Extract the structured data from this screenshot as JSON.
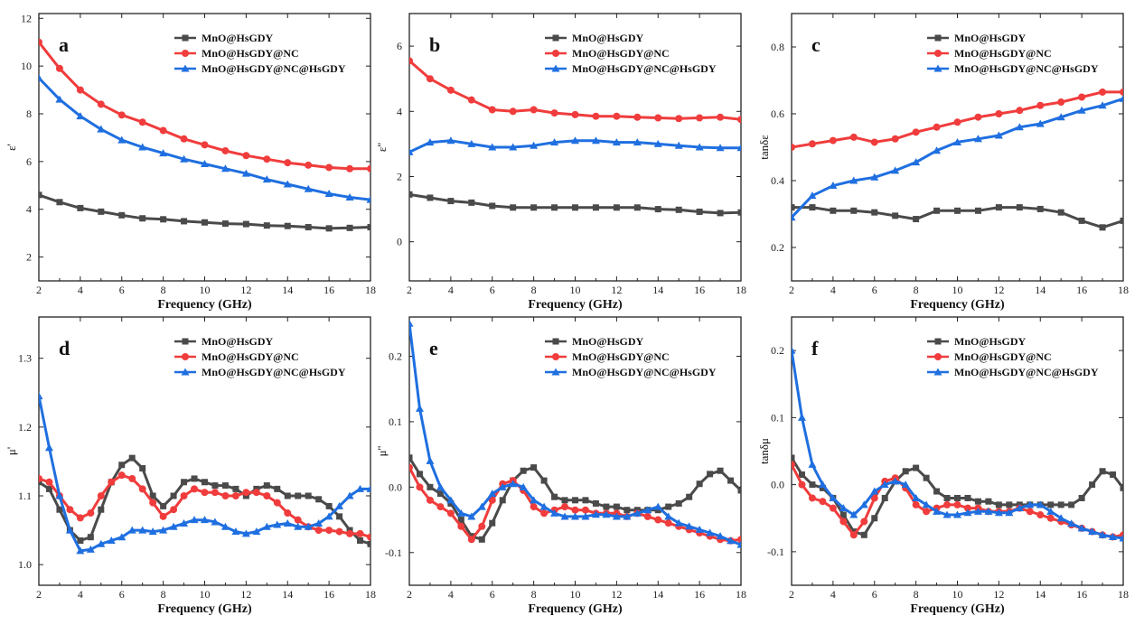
{
  "figure": {
    "xlabel": "Frequency (GHz)"
  },
  "series_styles": [
    {
      "name": "MnO@HsGDY",
      "color": "#4a4a4a",
      "marker": "square"
    },
    {
      "name": "MnO@HsGDY@NC",
      "color": "#f03c3c",
      "marker": "circle"
    },
    {
      "name": "MnO@HsGDY@NC@HsGDY",
      "color": "#1f6fe0",
      "marker": "triangle"
    }
  ],
  "chart_data": [
    {
      "type": "line",
      "panel": "a",
      "ylabel": "ε'",
      "xlabel": "Frequency (GHz)",
      "xlim": [
        2,
        18
      ],
      "ylim": [
        1,
        12.2
      ],
      "xticks": [
        "2",
        "4",
        "6",
        "8",
        "10",
        "12",
        "14",
        "16",
        "18"
      ],
      "yticks": [
        "2",
        "4",
        "6",
        "8",
        "10",
        "12"
      ],
      "legend": "top-center",
      "x": [
        2,
        3,
        4,
        5,
        6,
        7,
        8,
        9,
        10,
        11,
        12,
        13,
        14,
        15,
        16,
        17,
        18
      ],
      "series": [
        {
          "name": "MnO@HsGDY",
          "values": [
            4.6,
            4.3,
            4.05,
            3.9,
            3.75,
            3.62,
            3.58,
            3.5,
            3.45,
            3.4,
            3.38,
            3.32,
            3.3,
            3.25,
            3.2,
            3.22,
            3.25
          ]
        },
        {
          "name": "MnO@HsGDY@NC",
          "values": [
            11.0,
            9.9,
            9.0,
            8.4,
            7.95,
            7.65,
            7.3,
            6.95,
            6.7,
            6.45,
            6.25,
            6.1,
            5.95,
            5.85,
            5.75,
            5.7,
            5.7
          ]
        },
        {
          "name": "MnO@HsGDY@NC@HsGDY",
          "values": [
            9.5,
            8.6,
            7.9,
            7.35,
            6.9,
            6.6,
            6.35,
            6.1,
            5.9,
            5.7,
            5.5,
            5.25,
            5.05,
            4.85,
            4.65,
            4.5,
            4.4
          ]
        }
      ]
    },
    {
      "type": "line",
      "panel": "b",
      "ylabel": "ε''",
      "xlabel": "Frequency (GHz)",
      "xlim": [
        2,
        18
      ],
      "ylim": [
        -1.2,
        7.0
      ],
      "xticks": [
        "2",
        "4",
        "6",
        "8",
        "10",
        "12",
        "14",
        "16",
        "18"
      ],
      "yticks": [
        "0",
        "2",
        "4",
        "6"
      ],
      "legend": "top-center",
      "x": [
        2,
        3,
        4,
        5,
        6,
        7,
        8,
        9,
        10,
        11,
        12,
        13,
        14,
        15,
        16,
        17,
        18
      ],
      "series": [
        {
          "name": "MnO@HsGDY",
          "values": [
            1.45,
            1.35,
            1.25,
            1.2,
            1.1,
            1.05,
            1.05,
            1.05,
            1.05,
            1.05,
            1.05,
            1.05,
            1.0,
            0.98,
            0.92,
            0.88,
            0.9
          ]
        },
        {
          "name": "MnO@HsGDY@NC",
          "values": [
            5.55,
            5.0,
            4.65,
            4.35,
            4.05,
            4.0,
            4.05,
            3.95,
            3.9,
            3.85,
            3.85,
            3.82,
            3.8,
            3.78,
            3.8,
            3.82,
            3.75
          ]
        },
        {
          "name": "MnO@HsGDY@NC@HsGDY",
          "values": [
            2.75,
            3.05,
            3.1,
            3.0,
            2.9,
            2.9,
            2.95,
            3.05,
            3.1,
            3.1,
            3.05,
            3.05,
            3.0,
            2.95,
            2.9,
            2.88,
            2.88
          ]
        }
      ]
    },
    {
      "type": "line",
      "panel": "c",
      "ylabel": "tanδε",
      "xlabel": "Frequency (GHz)",
      "xlim": [
        2,
        18
      ],
      "ylim": [
        0.1,
        0.9
      ],
      "xticks": [
        "2",
        "4",
        "6",
        "8",
        "10",
        "12",
        "14",
        "16",
        "18"
      ],
      "yticks": [
        "0.2",
        "0.4",
        "0.6",
        "0.8"
      ],
      "legend": "top-center",
      "x": [
        2,
        3,
        4,
        5,
        6,
        7,
        8,
        9,
        10,
        11,
        12,
        13,
        14,
        15,
        16,
        17,
        18
      ],
      "series": [
        {
          "name": "MnO@HsGDY",
          "values": [
            0.32,
            0.32,
            0.31,
            0.31,
            0.305,
            0.295,
            0.285,
            0.31,
            0.31,
            0.31,
            0.32,
            0.32,
            0.315,
            0.305,
            0.28,
            0.26,
            0.28
          ]
        },
        {
          "name": "MnO@HsGDY@NC",
          "values": [
            0.5,
            0.51,
            0.52,
            0.53,
            0.515,
            0.525,
            0.545,
            0.56,
            0.575,
            0.59,
            0.6,
            0.61,
            0.625,
            0.635,
            0.65,
            0.665,
            0.665
          ]
        },
        {
          "name": "MnO@HsGDY@NC@HsGDY",
          "values": [
            0.29,
            0.355,
            0.385,
            0.4,
            0.41,
            0.43,
            0.455,
            0.49,
            0.515,
            0.525,
            0.535,
            0.56,
            0.57,
            0.59,
            0.61,
            0.625,
            0.645
          ]
        }
      ]
    },
    {
      "type": "line",
      "panel": "d",
      "ylabel": "μ'",
      "xlabel": "Frequency (GHz)",
      "xlim": [
        2,
        18
      ],
      "ylim": [
        0.97,
        1.36
      ],
      "xticks": [
        "2",
        "4",
        "6",
        "8",
        "10",
        "12",
        "14",
        "16",
        "18"
      ],
      "yticks": [
        "1.0",
        "1.1",
        "1.2",
        "1.3"
      ],
      "legend": "top-center",
      "x": [
        2,
        2.5,
        3,
        3.5,
        4,
        4.5,
        5,
        5.5,
        6,
        6.5,
        7,
        7.5,
        8,
        8.5,
        9,
        9.5,
        10,
        10.5,
        11,
        11.5,
        12,
        12.5,
        13,
        13.5,
        14,
        14.5,
        15,
        15.5,
        16,
        16.5,
        17,
        17.5,
        18
      ],
      "series": [
        {
          "name": "MnO@HsGDY",
          "values": [
            1.12,
            1.11,
            1.08,
            1.05,
            1.035,
            1.04,
            1.08,
            1.12,
            1.145,
            1.155,
            1.14,
            1.1,
            1.085,
            1.1,
            1.12,
            1.125,
            1.12,
            1.115,
            1.115,
            1.11,
            1.1,
            1.11,
            1.115,
            1.11,
            1.1,
            1.1,
            1.1,
            1.095,
            1.085,
            1.07,
            1.05,
            1.035,
            1.03
          ]
        },
        {
          "name": "MnO@HsGDY@NC",
          "values": [
            1.125,
            1.12,
            1.1,
            1.08,
            1.068,
            1.075,
            1.1,
            1.12,
            1.13,
            1.125,
            1.11,
            1.09,
            1.07,
            1.08,
            1.1,
            1.11,
            1.105,
            1.105,
            1.1,
            1.1,
            1.105,
            1.105,
            1.1,
            1.09,
            1.075,
            1.065,
            1.055,
            1.05,
            1.05,
            1.048,
            1.045,
            1.045,
            1.04
          ]
        },
        {
          "name": "MnO@HsGDY@NC@HsGDY",
          "values": [
            1.245,
            1.17,
            1.1,
            1.05,
            1.02,
            1.022,
            1.03,
            1.035,
            1.04,
            1.05,
            1.05,
            1.048,
            1.05,
            1.055,
            1.06,
            1.065,
            1.065,
            1.062,
            1.055,
            1.048,
            1.045,
            1.048,
            1.055,
            1.058,
            1.06,
            1.055,
            1.055,
            1.06,
            1.07,
            1.085,
            1.1,
            1.11,
            1.11
          ]
        }
      ]
    },
    {
      "type": "line",
      "panel": "e",
      "ylabel": "μ''",
      "xlabel": "Frequency (GHz)",
      "xlim": [
        2,
        18
      ],
      "ylim": [
        -0.15,
        0.26
      ],
      "xticks": [
        "2",
        "4",
        "6",
        "8",
        "10",
        "12",
        "14",
        "16",
        "18"
      ],
      "yticks": [
        "-0.1",
        "0.0",
        "0.1",
        "0.2"
      ],
      "legend": "top-center",
      "x": [
        2,
        2.5,
        3,
        3.5,
        4,
        4.5,
        5,
        5.5,
        6,
        6.5,
        7,
        7.5,
        8,
        8.5,
        9,
        9.5,
        10,
        10.5,
        11,
        11.5,
        12,
        12.5,
        13,
        13.5,
        14,
        14.5,
        15,
        15.5,
        16,
        16.5,
        17,
        17.5,
        18
      ],
      "series": [
        {
          "name": "MnO@HsGDY",
          "values": [
            0.045,
            0.02,
            0.0,
            -0.01,
            -0.025,
            -0.05,
            -0.075,
            -0.08,
            -0.055,
            -0.02,
            0.01,
            0.025,
            0.03,
            0.01,
            -0.015,
            -0.02,
            -0.02,
            -0.02,
            -0.025,
            -0.03,
            -0.03,
            -0.035,
            -0.035,
            -0.035,
            -0.035,
            -0.03,
            -0.025,
            -0.015,
            0.005,
            0.02,
            0.025,
            0.01,
            -0.005
          ]
        },
        {
          "name": "MnO@HsGDY@NC",
          "values": [
            0.03,
            0.0,
            -0.02,
            -0.03,
            -0.04,
            -0.06,
            -0.08,
            -0.06,
            -0.02,
            0.005,
            0.01,
            -0.005,
            -0.03,
            -0.04,
            -0.035,
            -0.03,
            -0.035,
            -0.035,
            -0.04,
            -0.04,
            -0.04,
            -0.045,
            -0.04,
            -0.045,
            -0.05,
            -0.055,
            -0.06,
            -0.065,
            -0.07,
            -0.075,
            -0.08,
            -0.082,
            -0.08
          ]
        },
        {
          "name": "MnO@HsGDY@NC@HsGDY",
          "values": [
            0.25,
            0.12,
            0.04,
            0.0,
            -0.02,
            -0.04,
            -0.045,
            -0.03,
            -0.01,
            0.0,
            0.005,
            0.0,
            -0.02,
            -0.03,
            -0.04,
            -0.045,
            -0.045,
            -0.045,
            -0.042,
            -0.042,
            -0.045,
            -0.045,
            -0.04,
            -0.035,
            -0.03,
            -0.045,
            -0.055,
            -0.06,
            -0.065,
            -0.07,
            -0.075,
            -0.082,
            -0.088
          ]
        }
      ]
    },
    {
      "type": "line",
      "panel": "f",
      "ylabel": "tanδμ",
      "xlabel": "Frequency (GHz)",
      "xlim": [
        2,
        18
      ],
      "ylim": [
        -0.15,
        0.25
      ],
      "xticks": [
        "2",
        "4",
        "6",
        "8",
        "10",
        "12",
        "14",
        "16",
        "18"
      ],
      "yticks": [
        "-0.1",
        "0.0",
        "0.1",
        "0.2"
      ],
      "legend": "top-center",
      "x": [
        2,
        2.5,
        3,
        3.5,
        4,
        4.5,
        5,
        5.5,
        6,
        6.5,
        7,
        7.5,
        8,
        8.5,
        9,
        9.5,
        10,
        10.5,
        11,
        11.5,
        12,
        12.5,
        13,
        13.5,
        14,
        14.5,
        15,
        15.5,
        16,
        16.5,
        17,
        17.5,
        18
      ],
      "series": [
        {
          "name": "MnO@HsGDY",
          "values": [
            0.04,
            0.015,
            0.0,
            -0.005,
            -0.02,
            -0.045,
            -0.07,
            -0.075,
            -0.05,
            -0.02,
            0.005,
            0.02,
            0.025,
            0.01,
            -0.01,
            -0.02,
            -0.02,
            -0.02,
            -0.025,
            -0.025,
            -0.03,
            -0.03,
            -0.03,
            -0.03,
            -0.03,
            -0.03,
            -0.03,
            -0.03,
            -0.02,
            0.0,
            0.02,
            0.015,
            -0.005
          ]
        },
        {
          "name": "MnO@HsGDY@NC",
          "values": [
            0.03,
            0.0,
            -0.02,
            -0.025,
            -0.035,
            -0.055,
            -0.075,
            -0.055,
            -0.02,
            0.005,
            0.01,
            -0.005,
            -0.03,
            -0.04,
            -0.035,
            -0.03,
            -0.03,
            -0.035,
            -0.035,
            -0.04,
            -0.04,
            -0.04,
            -0.035,
            -0.04,
            -0.045,
            -0.05,
            -0.055,
            -0.06,
            -0.065,
            -0.07,
            -0.075,
            -0.078,
            -0.075
          ]
        },
        {
          "name": "MnO@HsGDY@NC@HsGDY",
          "values": [
            0.2,
            0.1,
            0.03,
            0.0,
            -0.02,
            -0.035,
            -0.045,
            -0.03,
            -0.01,
            0.0,
            0.005,
            0.0,
            -0.02,
            -0.03,
            -0.04,
            -0.045,
            -0.045,
            -0.042,
            -0.04,
            -0.04,
            -0.042,
            -0.042,
            -0.035,
            -0.03,
            -0.03,
            -0.04,
            -0.05,
            -0.058,
            -0.065,
            -0.07,
            -0.075,
            -0.078,
            -0.08
          ]
        }
      ]
    }
  ]
}
